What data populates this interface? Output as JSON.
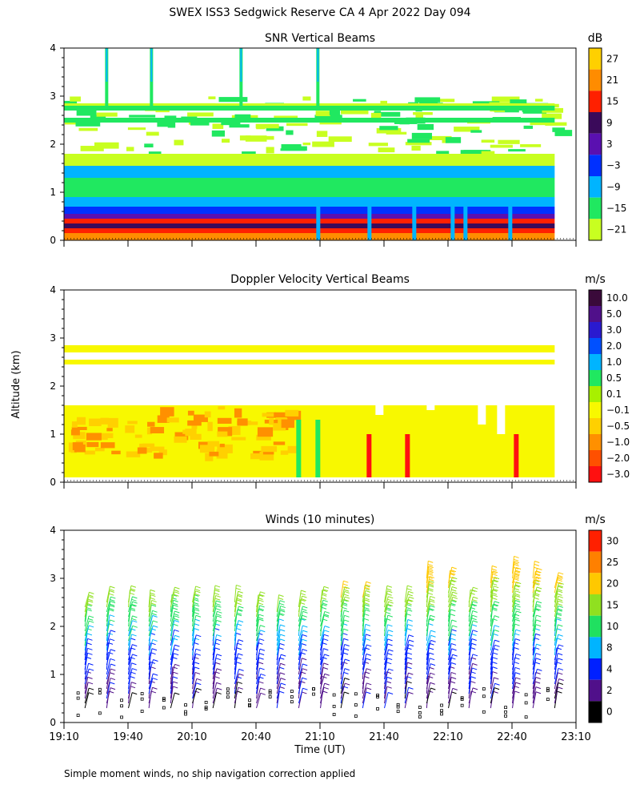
{
  "figure": {
    "title": "SWEX ISS3 Sedgwick Reserve CA    4 Apr 2022 Day 094",
    "shared_ylabel": "Altitude (km)",
    "shared_xlabel": "Time (UT)",
    "footnote": "Simple moment winds, no ship navigation correction applied"
  },
  "chart_data": [
    {
      "type": "heatmap",
      "title": "SNR Vertical Beams",
      "ylabel": "Altitude (km)",
      "ylim": [
        0,
        4
      ],
      "yticks": [
        "0",
        "1",
        "2",
        "3",
        "4"
      ],
      "xlim": [
        "19:10",
        "23:10"
      ],
      "colorbar": {
        "unit": "dB",
        "labels": [
          "27",
          "21",
          "15",
          "9",
          "3",
          "−3",
          "−9",
          "−15",
          "−21"
        ],
        "colors": [
          "#ffd000",
          "#ff8c00",
          "#ff2000",
          "#3a0a5a",
          "#5a10b0",
          "#0030ff",
          "#00b4ff",
          "#20e860",
          "#c8ff20"
        ]
      },
      "layers": [
        {
          "alt": [
            0.0,
            0.15
          ],
          "level": 1
        },
        {
          "alt": [
            0.15,
            0.25
          ],
          "level": 2
        },
        {
          "alt": [
            0.25,
            0.35
          ],
          "level": 3
        },
        {
          "alt": [
            0.35,
            0.45
          ],
          "level": 2
        },
        {
          "alt": [
            0.45,
            0.55
          ],
          "level": 4
        },
        {
          "alt": [
            0.55,
            0.7
          ],
          "level": 5
        },
        {
          "alt": [
            0.7,
            0.9
          ],
          "level": 6
        },
        {
          "alt": [
            0.9,
            1.3
          ],
          "level": 7
        },
        {
          "alt": [
            1.3,
            1.55
          ],
          "level": 6
        },
        {
          "alt": [
            1.55,
            1.8
          ],
          "level": 8
        },
        {
          "alt": [
            2.45,
            2.55
          ],
          "level": 7
        },
        {
          "alt": [
            2.7,
            2.8
          ],
          "level": 7
        },
        {
          "alt": [
            2.8,
            2.85
          ],
          "level": 8
        }
      ]
    },
    {
      "type": "heatmap",
      "title": "Doppler Velocity Vertical Beams",
      "ylabel": "Altitude (km)",
      "ylim": [
        0,
        4
      ],
      "yticks": [
        "0",
        "1",
        "2",
        "3",
        "4"
      ],
      "xlim": [
        "19:10",
        "23:10"
      ],
      "colorbar": {
        "unit": "m/s",
        "labels": [
          "10.0",
          "5.0",
          "3.0",
          "2.0",
          "1.0",
          "0.5",
          "0.1",
          "−0.1",
          "−0.5",
          "−1.0",
          "−2.0",
          "−3.0"
        ],
        "colors": [
          "#3a0a3a",
          "#50108a",
          "#2a1ad0",
          "#0050ff",
          "#00b4ff",
          "#20e860",
          "#a8f000",
          "#f8f800",
          "#ffd000",
          "#ff9000",
          "#ff5000",
          "#ff1010"
        ]
      },
      "layers": [
        {
          "alt": [
            0.1,
            1.6
          ],
          "level": 7
        },
        {
          "alt": [
            2.45,
            2.55
          ],
          "level": 7
        },
        {
          "alt": [
            2.7,
            2.85
          ],
          "level": 7
        }
      ]
    },
    {
      "type": "scatter",
      "title": "Winds (10 minutes)",
      "ylabel": "Altitude (km)",
      "xlabel": "Time (UT)",
      "ylim": [
        0,
        4
      ],
      "yticks": [
        "0",
        "1",
        "2",
        "3",
        "4"
      ],
      "xticks": [
        "19:10",
        "19:40",
        "20:10",
        "20:40",
        "21:10",
        "21:40",
        "22:10",
        "22:40",
        "23:10"
      ],
      "colorbar": {
        "unit": "m/s",
        "labels": [
          "30",
          "25",
          "20",
          "15",
          "10",
          "8",
          "4",
          "2",
          "0"
        ],
        "colors": [
          "#ff2000",
          "#ff8000",
          "#ffc800",
          "#90e020",
          "#20e060",
          "#00b4ff",
          "#0020ff",
          "#50108a",
          "#000000"
        ]
      },
      "times_hours": [
        19.33,
        19.5,
        19.67,
        19.83,
        20.0,
        20.17,
        20.33,
        20.5,
        20.67,
        20.83,
        21.0,
        21.17,
        21.33,
        21.5,
        21.67,
        21.83,
        22.0,
        22.17,
        22.33,
        22.5,
        22.67,
        22.83,
        23.0
      ],
      "profile_top_km": [
        2.5,
        2.6,
        2.6,
        2.5,
        2.6,
        2.6,
        2.6,
        2.6,
        2.5,
        2.4,
        2.5,
        2.6,
        2.7,
        2.7,
        2.6,
        2.6,
        3.1,
        3.0,
        2.6,
        3.0,
        3.2,
        3.1,
        2.9
      ],
      "speed_by_alt_ms": [
        {
          "alt_km": 0.5,
          "speed": 3
        },
        {
          "alt_km": 1.0,
          "speed": 5
        },
        {
          "alt_km": 1.5,
          "speed": 8
        },
        {
          "alt_km": 2.0,
          "speed": 12
        },
        {
          "alt_km": 2.5,
          "speed": 18
        },
        {
          "alt_km": 3.0,
          "speed": 24
        }
      ]
    }
  ]
}
